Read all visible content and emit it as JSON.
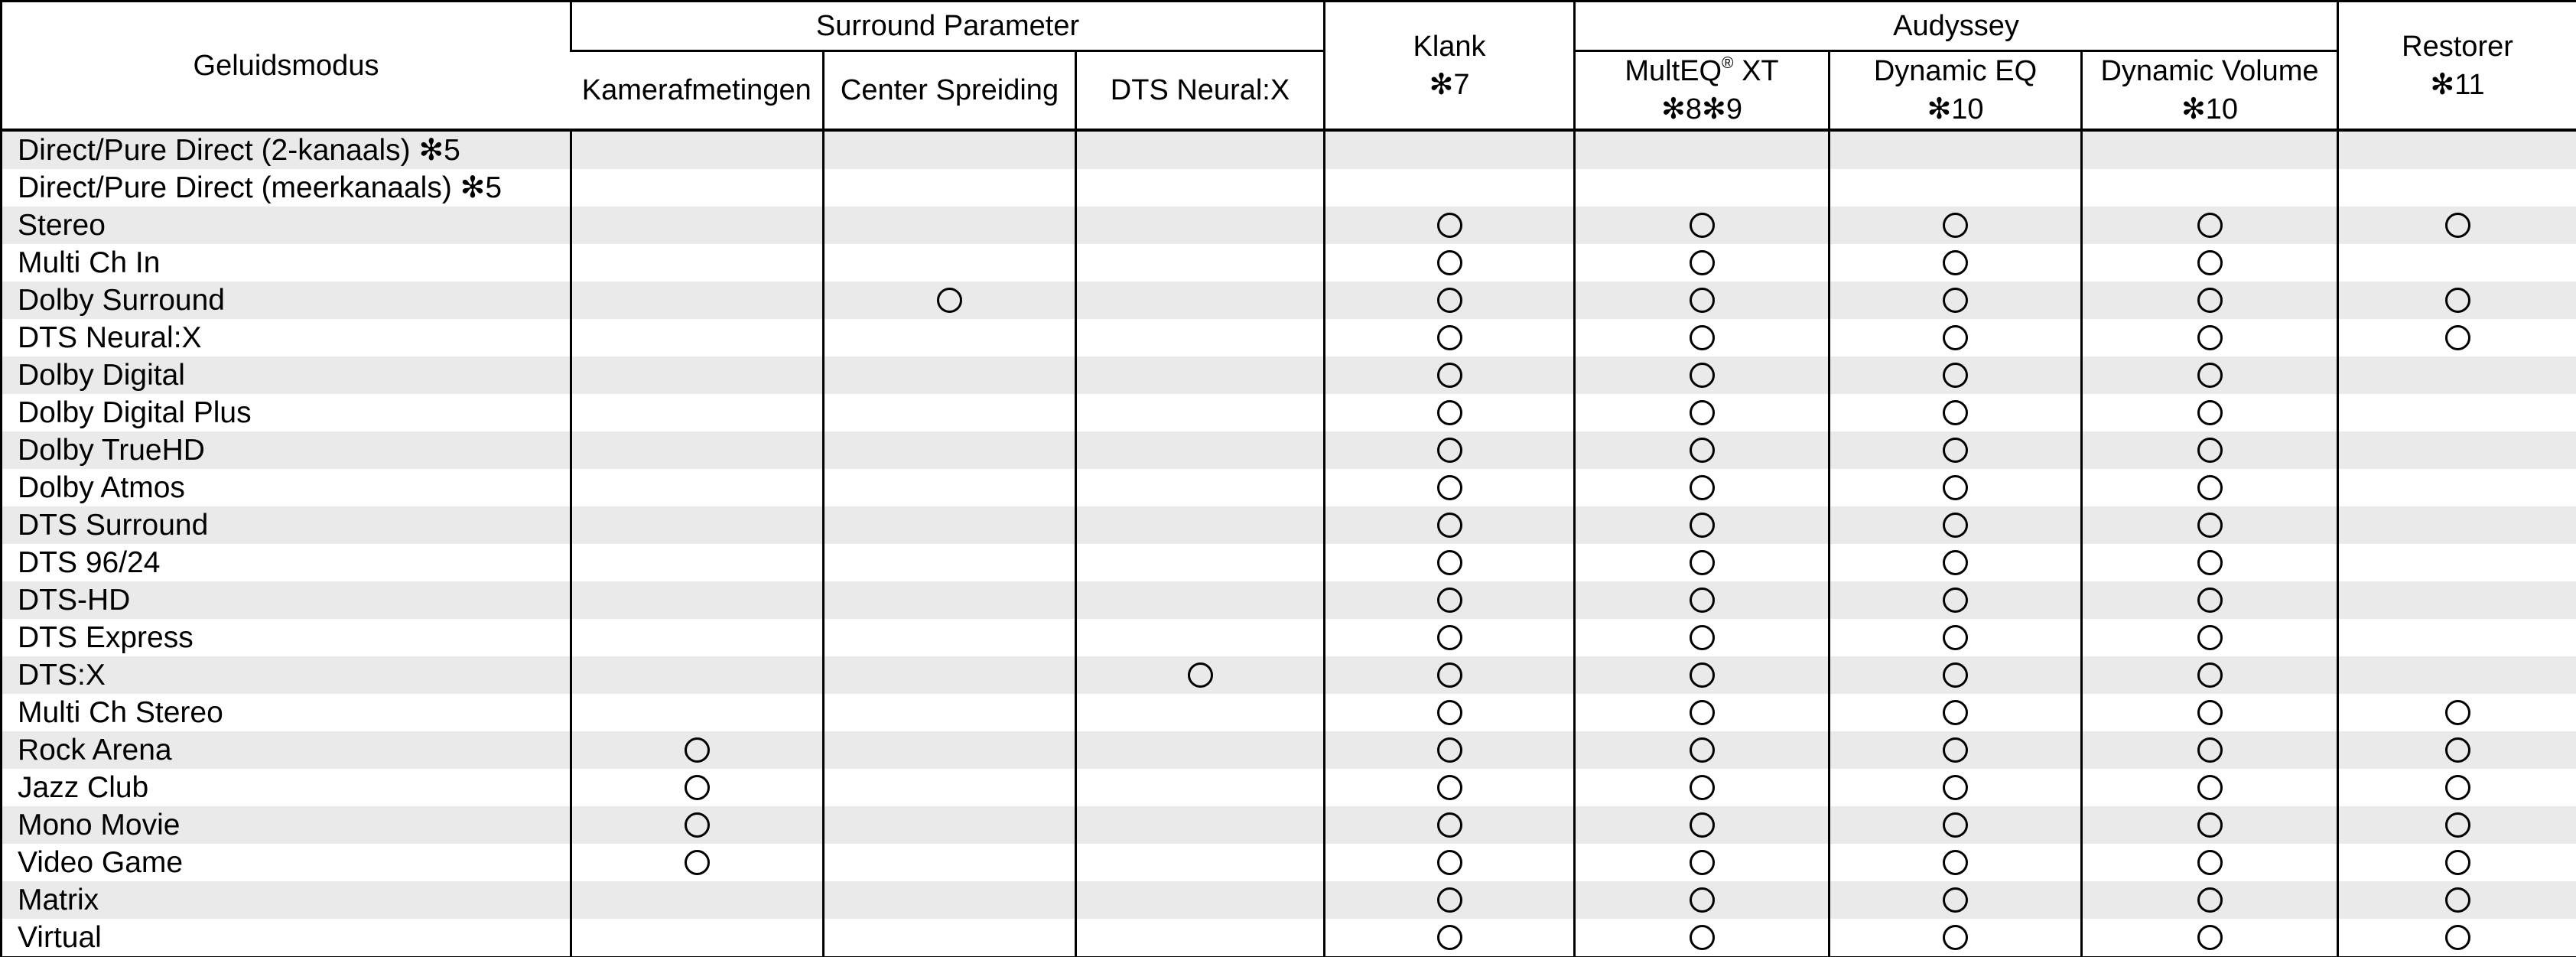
{
  "table": {
    "check_symbol": "○",
    "colors": {
      "row_alt_background": "#eaeaea",
      "border": "#000000",
      "text": "#000000"
    },
    "header": {
      "col_sound_mode": "Geluidsmodus",
      "group_surround": "Surround Parameter",
      "sub_room_size": "Kamerafmetingen",
      "sub_center_spread": "Center Spreiding",
      "sub_dts_neural": "DTS Neural:X",
      "col_tone": {
        "line1": "Klank",
        "line2": "✻7"
      },
      "group_audyssey": "Audyssey",
      "sub_multeq": {
        "name": "MultEQ",
        "reg": "®",
        "suffix": " XT",
        "footnote": "✻8✻9"
      },
      "sub_dynamic_eq": {
        "line1": "Dynamic EQ",
        "line2": "✻10"
      },
      "sub_dynamic_volume": {
        "line1": "Dynamic Volume",
        "line2": "✻10"
      },
      "col_restorer": {
        "line1": "Restorer",
        "line2": "✻11"
      }
    },
    "columns_order": [
      "kamerafmetingen",
      "center_spreiding",
      "dts_neural_x",
      "klank",
      "multeq_xt",
      "dynamic_eq",
      "dynamic_volume",
      "restorer"
    ],
    "rows": [
      {
        "label": "Direct/Pure Direct (2-kanaals) ✻5",
        "cells": [
          0,
          0,
          0,
          0,
          0,
          0,
          0,
          0
        ]
      },
      {
        "label": "Direct/Pure Direct (meerkanaals) ✻5",
        "cells": [
          0,
          0,
          0,
          0,
          0,
          0,
          0,
          0
        ]
      },
      {
        "label": "Stereo",
        "cells": [
          0,
          0,
          0,
          1,
          1,
          1,
          1,
          1
        ]
      },
      {
        "label": "Multi Ch In",
        "cells": [
          0,
          0,
          0,
          1,
          1,
          1,
          1,
          0
        ]
      },
      {
        "label": "Dolby Surround",
        "cells": [
          0,
          1,
          0,
          1,
          1,
          1,
          1,
          1
        ]
      },
      {
        "label": "DTS Neural:X",
        "cells": [
          0,
          0,
          0,
          1,
          1,
          1,
          1,
          1
        ]
      },
      {
        "label": "Dolby Digital",
        "cells": [
          0,
          0,
          0,
          1,
          1,
          1,
          1,
          0
        ]
      },
      {
        "label": "Dolby Digital Plus",
        "cells": [
          0,
          0,
          0,
          1,
          1,
          1,
          1,
          0
        ]
      },
      {
        "label": "Dolby TrueHD",
        "cells": [
          0,
          0,
          0,
          1,
          1,
          1,
          1,
          0
        ]
      },
      {
        "label": "Dolby Atmos",
        "cells": [
          0,
          0,
          0,
          1,
          1,
          1,
          1,
          0
        ]
      },
      {
        "label": "DTS Surround",
        "cells": [
          0,
          0,
          0,
          1,
          1,
          1,
          1,
          0
        ]
      },
      {
        "label": "DTS 96/24",
        "cells": [
          0,
          0,
          0,
          1,
          1,
          1,
          1,
          0
        ]
      },
      {
        "label": "DTS-HD",
        "cells": [
          0,
          0,
          0,
          1,
          1,
          1,
          1,
          0
        ]
      },
      {
        "label": "DTS Express",
        "cells": [
          0,
          0,
          0,
          1,
          1,
          1,
          1,
          0
        ]
      },
      {
        "label": "DTS:X",
        "cells": [
          0,
          0,
          1,
          1,
          1,
          1,
          1,
          0
        ]
      },
      {
        "label": "Multi Ch Stereo",
        "cells": [
          0,
          0,
          0,
          1,
          1,
          1,
          1,
          1
        ]
      },
      {
        "label": "Rock Arena",
        "cells": [
          1,
          0,
          0,
          1,
          1,
          1,
          1,
          1
        ]
      },
      {
        "label": "Jazz Club",
        "cells": [
          1,
          0,
          0,
          1,
          1,
          1,
          1,
          1
        ]
      },
      {
        "label": "Mono Movie",
        "cells": [
          1,
          0,
          0,
          1,
          1,
          1,
          1,
          1
        ]
      },
      {
        "label": "Video Game",
        "cells": [
          1,
          0,
          0,
          1,
          1,
          1,
          1,
          1
        ]
      },
      {
        "label": "Matrix",
        "cells": [
          0,
          0,
          0,
          1,
          1,
          1,
          1,
          1
        ]
      },
      {
        "label": "Virtual",
        "cells": [
          0,
          0,
          0,
          1,
          1,
          1,
          1,
          1
        ]
      }
    ]
  }
}
